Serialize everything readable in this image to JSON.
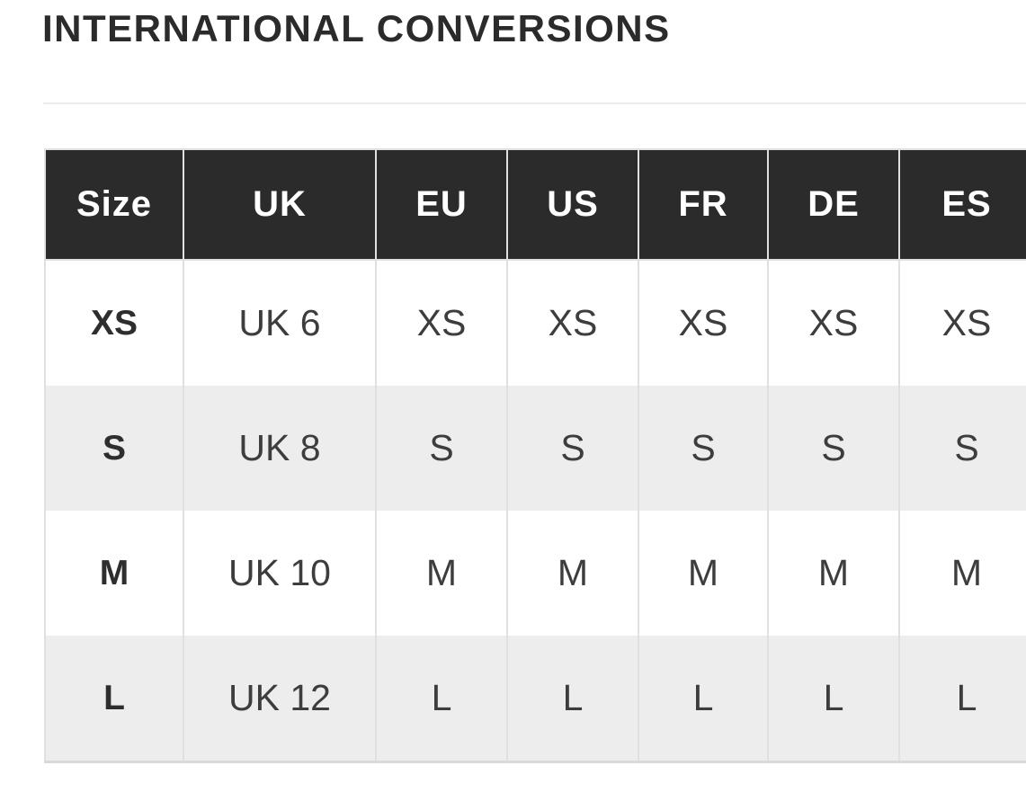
{
  "page": {
    "title": "INTERNATIONAL CONVERSIONS"
  },
  "conversion_table": {
    "columns": [
      "Size",
      "UK",
      "EU",
      "US",
      "FR",
      "DE",
      "ES"
    ],
    "rows": [
      [
        "XS",
        "UK 6",
        "XS",
        "XS",
        "XS",
        "XS",
        "XS"
      ],
      [
        "S",
        "UK 8",
        "S",
        "S",
        "S",
        "S",
        "S"
      ],
      [
        "M",
        "UK 10",
        "M",
        "M",
        "M",
        "M",
        "M"
      ],
      [
        "L",
        "UK 12",
        "L",
        "L",
        "L",
        "L",
        "L"
      ]
    ]
  },
  "colors": {
    "header_bg": "#2b2b2b",
    "header_text": "#ffffff",
    "row_stripe": "#ededed",
    "cell_text": "#3d3d3d",
    "label_text": "#2e2e2e",
    "title_text": "#2b2b2b",
    "border": "#e0e0e0",
    "divider": "#ececec"
  }
}
